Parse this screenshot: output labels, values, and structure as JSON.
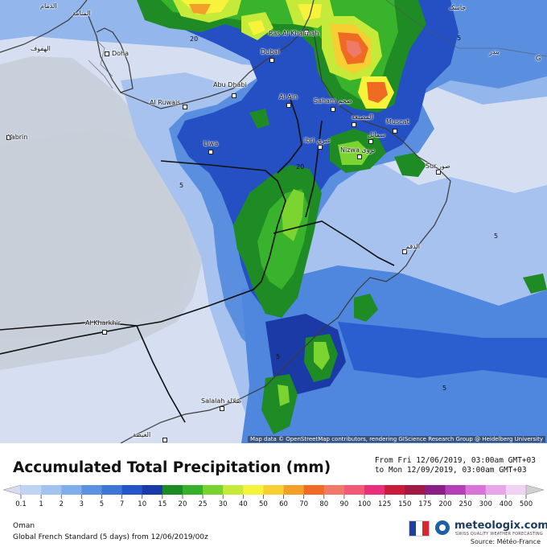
{
  "map": {
    "attribution": "Map data © OpenStreetMap contributors, rendering GIScience Research Group @ Heidelberg University",
    "cities": [
      {
        "id": "dammam",
        "name": "الدمام",
        "dot": false
      },
      {
        "id": "manama",
        "name": "المنامة",
        "dot": false
      },
      {
        "id": "hofuf",
        "name": "الهفوف",
        "dot": false
      },
      {
        "id": "doha",
        "name": "Doha",
        "dot": true
      },
      {
        "id": "yabrin",
        "name": "Yabrin",
        "dot": true
      },
      {
        "id": "rasalkhaimah",
        "name": "Ras Al Khaimah",
        "dot": true
      },
      {
        "id": "dubai",
        "name": "Dubai",
        "dot": true
      },
      {
        "id": "abudhabi",
        "name": "Abu Dhabi",
        "dot": true
      },
      {
        "id": "alruwais",
        "name": "Al Ruwais",
        "dot": true
      },
      {
        "id": "alain",
        "name": "Al Ain",
        "dot": true
      },
      {
        "id": "saham",
        "name": "Saham صحم",
        "dot": true
      },
      {
        "id": "musanaa",
        "name": "المصنعة",
        "dot": true
      },
      {
        "id": "muscat",
        "name": "Muscat",
        "dot": true
      },
      {
        "id": "ibri",
        "name": "Ibri عبري",
        "dot": true
      },
      {
        "id": "samail",
        "name": "سمائل",
        "dot": true
      },
      {
        "id": "nizwa",
        "name": "Nizwa نزوى",
        "dot": true
      },
      {
        "id": "liwa",
        "name": "Liwa",
        "dot": true
      },
      {
        "id": "sur",
        "name": "Sur صور",
        "dot": true
      },
      {
        "id": "jask",
        "name": "جاسک",
        "dot": false
      },
      {
        "id": "bandar",
        "name": "بندر",
        "dot": false
      },
      {
        "id": "g",
        "name": "G",
        "dot": false
      },
      {
        "id": "duqm",
        "name": "الدقم",
        "dot": true
      },
      {
        "id": "alkharkhir",
        "name": "Al Kharkhir",
        "dot": true
      },
      {
        "id": "salalah",
        "name": "Salalah صلالة",
        "dot": true
      },
      {
        "id": "alghaydah",
        "name": "الغيضة",
        "dot": true
      }
    ],
    "contour_labels": [
      "20",
      "5",
      "20",
      "5",
      "5",
      "5",
      "5"
    ]
  },
  "legend": {
    "title": "Accumulated Total Precipitation (mm)",
    "from_line": "From Fri 12/06/2019, 03:00am GMT+03",
    "to_line": "to Mon 12/09/2019, 03:00am GMT+03",
    "scale_unit": "mm",
    "ticks": [
      "0.1",
      "1",
      "2",
      "3",
      "5",
      "7",
      "10",
      "15",
      "20",
      "25",
      "30",
      "40",
      "50",
      "60",
      "70",
      "80",
      "90",
      "100",
      "125",
      "150",
      "175",
      "200",
      "250",
      "300",
      "400",
      "500"
    ],
    "colors": [
      "#d9dcee",
      "#bfd4f2",
      "#a3c3ef",
      "#80aeea",
      "#5a92e0",
      "#3f76d6",
      "#2456c9",
      "#1a3aa8",
      "#1e8a24",
      "#36b02a",
      "#7ad22e",
      "#c6ea3a",
      "#f7f23a",
      "#f6cf32",
      "#f3a02b",
      "#ef6b24",
      "#f07a6a",
      "#f25a7a",
      "#e8307a",
      "#c91c3c",
      "#a01a44",
      "#8a1f86",
      "#b43fb6",
      "#d774d8",
      "#e6a6e8",
      "#f0d2f2",
      "#d0d0d0"
    ]
  },
  "footer": {
    "region": "Oman",
    "model": "Global French Standard (5 days)  from  12/06/2019/00z",
    "brand": "meteologix.com",
    "tagline": "SWISS QUALITY WEATHER FORECASTING",
    "source": "Source: Météo-France",
    "flag_colors": [
      "#1e3fa0",
      "#ffffff",
      "#d7282f"
    ]
  }
}
